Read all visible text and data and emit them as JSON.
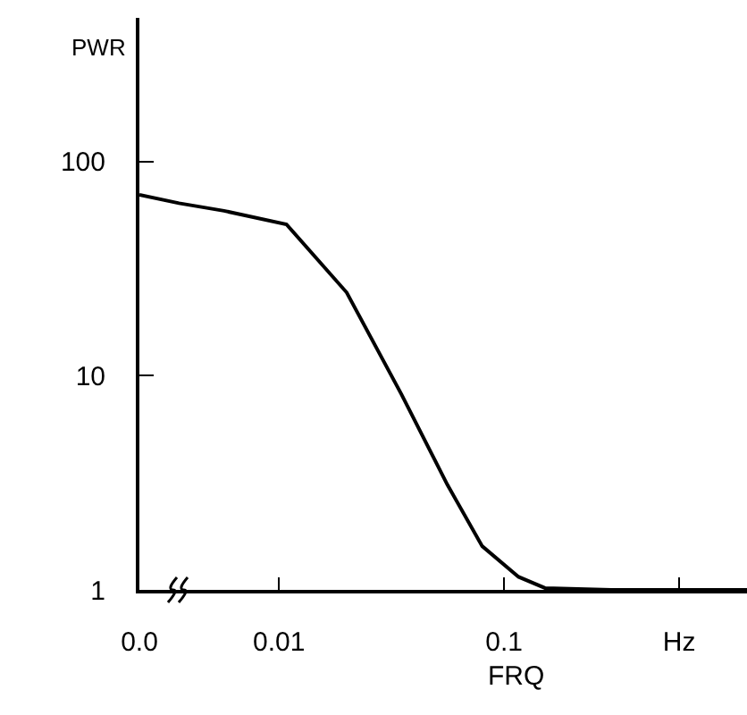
{
  "chart_data": {
    "type": "line",
    "xlabel": "FRQ",
    "ylabel": "PWR",
    "log": "xy",
    "grid": false,
    "marker": "none",
    "line_style": "solid",
    "x": [
      0.0024,
      0.0036,
      0.0057,
      0.0108,
      0.02,
      0.035,
      0.056,
      0.08,
      0.116,
      0.152,
      0.3,
      1.2
    ],
    "series": [
      {
        "color": "#000000",
        "values": [
          70,
          64,
          59,
          51,
          24.5,
          8.2,
          3.1,
          1.6,
          1.15,
          1.02,
          1,
          1
        ]
      }
    ],
    "xlim": [
      0.0024,
      1.2
    ],
    "xticks": [
      {
        "value": 0.0024,
        "label": "0.0"
      },
      0.01,
      0.1,
      {
        "value": 0.6,
        "label": "Hz"
      }
    ],
    "ylim": [
      1,
      470
    ],
    "yticks": [
      1,
      10,
      100
    ]
  }
}
